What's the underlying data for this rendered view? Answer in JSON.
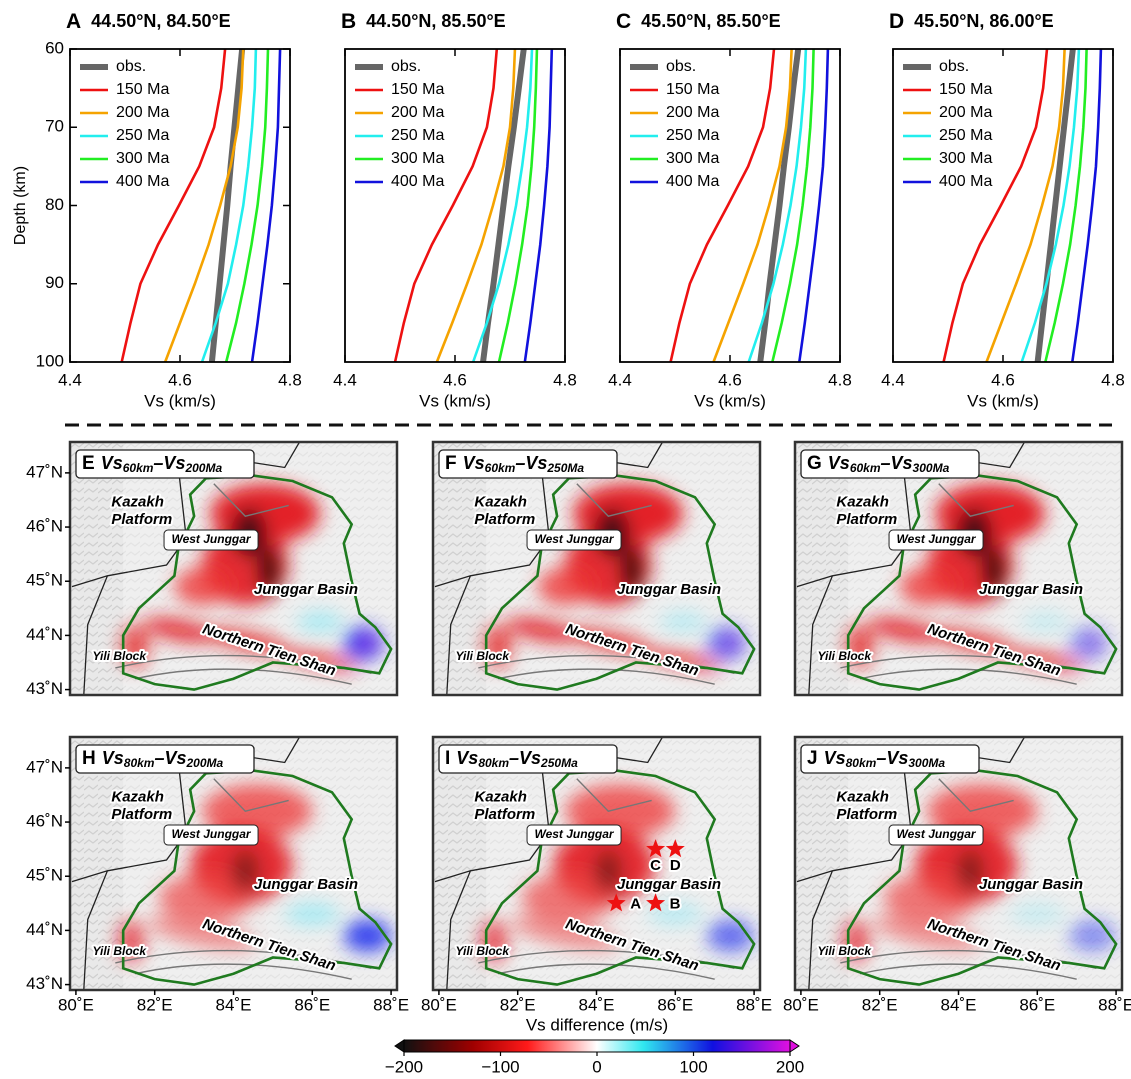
{
  "chart_data": [
    {
      "type": "line",
      "panel": "A",
      "title": "44.50°N, 84.50°E",
      "xlabel": "Vs (km/s)",
      "ylabel": "Depth (km)",
      "xlim": [
        4.4,
        4.8
      ],
      "xticks": [
        4.4,
        4.6,
        4.8
      ],
      "ylim": [
        60,
        100
      ],
      "invert_y": true,
      "yticks": [
        60,
        70,
        80,
        90,
        100
      ],
      "y": [
        60,
        65,
        70,
        75,
        80,
        85,
        90,
        95,
        100
      ],
      "series": [
        {
          "name": "obs.",
          "color": "#666666",
          "values": [
            4.713,
            4.706,
            4.699,
            4.692,
            4.686,
            4.679,
            4.672,
            4.665,
            4.658
          ]
        },
        {
          "name": "150 Ma",
          "color": "#ee1111",
          "values": [
            4.682,
            4.675,
            4.662,
            4.635,
            4.598,
            4.56,
            4.528,
            4.51,
            4.494
          ]
        },
        {
          "name": "200 Ma",
          "color": "#f5a300",
          "values": [
            4.715,
            4.712,
            4.705,
            4.692,
            4.673,
            4.652,
            4.627,
            4.6,
            4.573
          ]
        },
        {
          "name": "250 Ma",
          "color": "#22eeee",
          "values": [
            4.738,
            4.736,
            4.731,
            4.724,
            4.715,
            4.702,
            4.687,
            4.665,
            4.64
          ]
        },
        {
          "name": "300 Ma",
          "color": "#22ee22",
          "values": [
            4.76,
            4.758,
            4.755,
            4.749,
            4.741,
            4.73,
            4.717,
            4.702,
            4.684
          ]
        },
        {
          "name": "400 Ma",
          "color": "#1111dd",
          "values": [
            4.782,
            4.78,
            4.778,
            4.773,
            4.767,
            4.759,
            4.75,
            4.741,
            4.731
          ]
        }
      ]
    },
    {
      "type": "line",
      "panel": "B",
      "title": "44.50°N, 85.50°E",
      "xlabel": "Vs (km/s)",
      "xlim": [
        4.4,
        4.8
      ],
      "xticks": [
        4.4,
        4.6,
        4.8
      ],
      "ylim": [
        60,
        100
      ],
      "invert_y": true,
      "y": [
        60,
        65,
        70,
        75,
        80,
        85,
        90,
        95,
        100
      ],
      "series": [
        {
          "name": "obs.",
          "color": "#666666",
          "values": [
            4.725,
            4.716,
            4.707,
            4.697,
            4.688,
            4.679,
            4.67,
            4.66,
            4.651
          ]
        },
        {
          "name": "150 Ma",
          "color": "#ee1111",
          "values": [
            4.676,
            4.67,
            4.658,
            4.632,
            4.596,
            4.558,
            4.526,
            4.507,
            4.491
          ]
        },
        {
          "name": "200 Ma",
          "color": "#f5a300",
          "values": [
            4.709,
            4.706,
            4.7,
            4.688,
            4.669,
            4.648,
            4.622,
            4.595,
            4.567
          ]
        },
        {
          "name": "250 Ma",
          "color": "#22eeee",
          "values": [
            4.74,
            4.737,
            4.731,
            4.722,
            4.711,
            4.697,
            4.68,
            4.658,
            4.633
          ]
        },
        {
          "name": "300 Ma",
          "color": "#22ee22",
          "values": [
            4.749,
            4.747,
            4.744,
            4.739,
            4.732,
            4.722,
            4.71,
            4.696,
            4.68
          ]
        },
        {
          "name": "400 Ma",
          "color": "#1111dd",
          "values": [
            4.776,
            4.774,
            4.772,
            4.768,
            4.762,
            4.755,
            4.746,
            4.737,
            4.727
          ]
        }
      ]
    },
    {
      "type": "line",
      "panel": "C",
      "title": "45.50°N, 85.50°E",
      "xlabel": "Vs (km/s)",
      "xlim": [
        4.4,
        4.8
      ],
      "xticks": [
        4.4,
        4.6,
        4.8
      ],
      "ylim": [
        60,
        100
      ],
      "invert_y": true,
      "y": [
        60,
        65,
        70,
        75,
        80,
        85,
        90,
        95,
        100
      ],
      "series": [
        {
          "name": "obs.",
          "color": "#666666",
          "values": [
            4.724,
            4.715,
            4.707,
            4.698,
            4.69,
            4.681,
            4.672,
            4.664,
            4.655
          ]
        },
        {
          "name": "150 Ma",
          "color": "#ee1111",
          "values": [
            4.68,
            4.673,
            4.66,
            4.633,
            4.596,
            4.558,
            4.527,
            4.508,
            4.492
          ]
        },
        {
          "name": "200 Ma",
          "color": "#f5a300",
          "values": [
            4.712,
            4.709,
            4.702,
            4.69,
            4.671,
            4.65,
            4.624,
            4.597,
            4.57
          ]
        },
        {
          "name": "250 Ma",
          "color": "#22eeee",
          "values": [
            4.738,
            4.735,
            4.729,
            4.721,
            4.71,
            4.696,
            4.679,
            4.658,
            4.634
          ]
        },
        {
          "name": "300 Ma",
          "color": "#22ee22",
          "values": [
            4.752,
            4.75,
            4.746,
            4.74,
            4.732,
            4.722,
            4.709,
            4.694,
            4.677
          ]
        },
        {
          "name": "400 Ma",
          "color": "#1111dd",
          "values": [
            4.778,
            4.776,
            4.773,
            4.769,
            4.762,
            4.754,
            4.745,
            4.736,
            4.726
          ]
        }
      ]
    },
    {
      "type": "line",
      "panel": "D",
      "title": "45.50°N, 86.00°E",
      "xlabel": "Vs (km/s)",
      "xlim": [
        4.4,
        4.8
      ],
      "xticks": [
        4.4,
        4.6,
        4.8
      ],
      "ylim": [
        60,
        100
      ],
      "invert_y": true,
      "y": [
        60,
        65,
        70,
        75,
        80,
        85,
        90,
        95,
        100
      ],
      "series": [
        {
          "name": "obs.",
          "color": "#666666",
          "values": [
            4.727,
            4.719,
            4.711,
            4.703,
            4.695,
            4.687,
            4.679,
            4.671,
            4.663
          ]
        },
        {
          "name": "150 Ma",
          "color": "#ee1111",
          "values": [
            4.68,
            4.673,
            4.66,
            4.633,
            4.596,
            4.558,
            4.527,
            4.508,
            4.492
          ]
        },
        {
          "name": "200 Ma",
          "color": "#f5a300",
          "values": [
            4.712,
            4.709,
            4.702,
            4.69,
            4.671,
            4.65,
            4.624,
            4.597,
            4.57
          ]
        },
        {
          "name": "250 Ma",
          "color": "#22eeee",
          "values": [
            4.738,
            4.735,
            4.729,
            4.721,
            4.71,
            4.696,
            4.679,
            4.658,
            4.634
          ]
        },
        {
          "name": "300 Ma",
          "color": "#22ee22",
          "values": [
            4.752,
            4.75,
            4.746,
            4.74,
            4.732,
            4.722,
            4.709,
            4.694,
            4.677
          ]
        },
        {
          "name": "400 Ma",
          "color": "#1111dd",
          "values": [
            4.778,
            4.776,
            4.773,
            4.769,
            4.762,
            4.754,
            4.745,
            4.736,
            4.726
          ]
        }
      ]
    },
    {
      "type": "map",
      "panel": "E",
      "title": [
        "Vs",
        "60km",
        "–Vs",
        "200Ma"
      ],
      "labels": [
        "Kazakh",
        "Platform",
        "West Junggar",
        "Junggar Basin",
        "Yili Block",
        "Northern Tien Shan"
      ],
      "xlim": [
        79.85,
        88.15
      ],
      "ylim": [
        42.9,
        47.57
      ],
      "yticks": [
        {
          "value": 43,
          "label": "43˚N"
        },
        {
          "value": 44,
          "label": "44˚N"
        },
        {
          "value": 45,
          "label": "45˚N"
        },
        {
          "value": 46,
          "label": "46˚N"
        },
        {
          "value": 47,
          "label": "47˚N"
        }
      ]
    },
    {
      "type": "map",
      "panel": "F",
      "title": [
        "Vs",
        "60km",
        "–Vs",
        "250Ma"
      ],
      "labels": [
        "Kazakh",
        "Platform",
        "West Junggar",
        "Junggar Basin",
        "Yili Block",
        "Northern Tien Shan"
      ],
      "xlim": [
        79.85,
        88.15
      ],
      "ylim": [
        42.9,
        47.57
      ]
    },
    {
      "type": "map",
      "panel": "G",
      "title": [
        "Vs",
        "60km",
        "–Vs",
        "300Ma"
      ],
      "labels": [
        "Kazakh",
        "Platform",
        "West Junggar",
        "Junggar Basin",
        "Yili Block",
        "Northern Tien Shan"
      ],
      "xlim": [
        79.85,
        88.15
      ],
      "ylim": [
        42.9,
        47.57
      ]
    },
    {
      "type": "map",
      "panel": "H",
      "title": [
        "Vs",
        "80km",
        "–Vs",
        "200Ma"
      ],
      "labels": [
        "Kazakh",
        "Platform",
        "West Junggar",
        "Junggar Basin",
        "Yili Block",
        "Northern Tien Shan"
      ],
      "xlim": [
        79.85,
        88.15
      ],
      "ylim": [
        42.9,
        47.57
      ],
      "yticks": [
        {
          "value": 43,
          "label": "43˚N"
        },
        {
          "value": 44,
          "label": "44˚N"
        },
        {
          "value": 45,
          "label": "45˚N"
        },
        {
          "value": 46,
          "label": "46˚N"
        },
        {
          "value": 47,
          "label": "47˚N"
        }
      ],
      "xticks": [
        {
          "value": 80,
          "label": "80˚E"
        },
        {
          "value": 82,
          "label": "82˚E"
        },
        {
          "value": 84,
          "label": "84˚E"
        },
        {
          "value": 86,
          "label": "86˚E"
        },
        {
          "value": 88,
          "label": "88˚E"
        }
      ]
    },
    {
      "type": "map",
      "panel": "I",
      "title": [
        "Vs",
        "80km",
        "–Vs",
        "250Ma"
      ],
      "labels": [
        "Kazakh",
        "Platform",
        "West Junggar",
        "Junggar Basin",
        "Yili Block",
        "Northern Tien Shan"
      ],
      "xlim": [
        79.85,
        88.15
      ],
      "ylim": [
        42.9,
        47.57
      ],
      "xticks": [
        {
          "value": 80,
          "label": "80˚E"
        },
        {
          "value": 82,
          "label": "82˚E"
        },
        {
          "value": 84,
          "label": "84˚E"
        },
        {
          "value": 86,
          "label": "86˚E"
        },
        {
          "value": 88,
          "label": "88˚E"
        }
      ],
      "stars": [
        {
          "label": "A",
          "lon": 84.5,
          "lat": 44.5
        },
        {
          "label": "B",
          "lon": 85.5,
          "lat": 44.5
        },
        {
          "label": "C",
          "lon": 85.5,
          "lat": 45.5
        },
        {
          "label": "D",
          "lon": 86.0,
          "lat": 45.5
        }
      ]
    },
    {
      "type": "map",
      "panel": "J",
      "title": [
        "Vs",
        "80km",
        "–Vs",
        "300Ma"
      ],
      "labels": [
        "Kazakh",
        "Platform",
        "West Junggar",
        "Junggar Basin",
        "Yili Block",
        "Northern Tien Shan"
      ],
      "xlim": [
        79.85,
        88.15
      ],
      "ylim": [
        42.9,
        47.57
      ],
      "xticks": [
        {
          "value": 80,
          "label": "80˚E"
        },
        {
          "value": 82,
          "label": "82˚E"
        },
        {
          "value": 84,
          "label": "84˚E"
        },
        {
          "value": 86,
          "label": "86˚E"
        },
        {
          "value": 88,
          "label": "88˚E"
        }
      ]
    },
    {
      "type": "colorbar",
      "label": "Vs difference (m/s)",
      "xlim": [
        -200,
        200
      ],
      "xticks": [
        {
          "value": -200,
          "label": "−200"
        },
        {
          "value": -100,
          "label": "−100"
        },
        0,
        100,
        200
      ]
    }
  ]
}
